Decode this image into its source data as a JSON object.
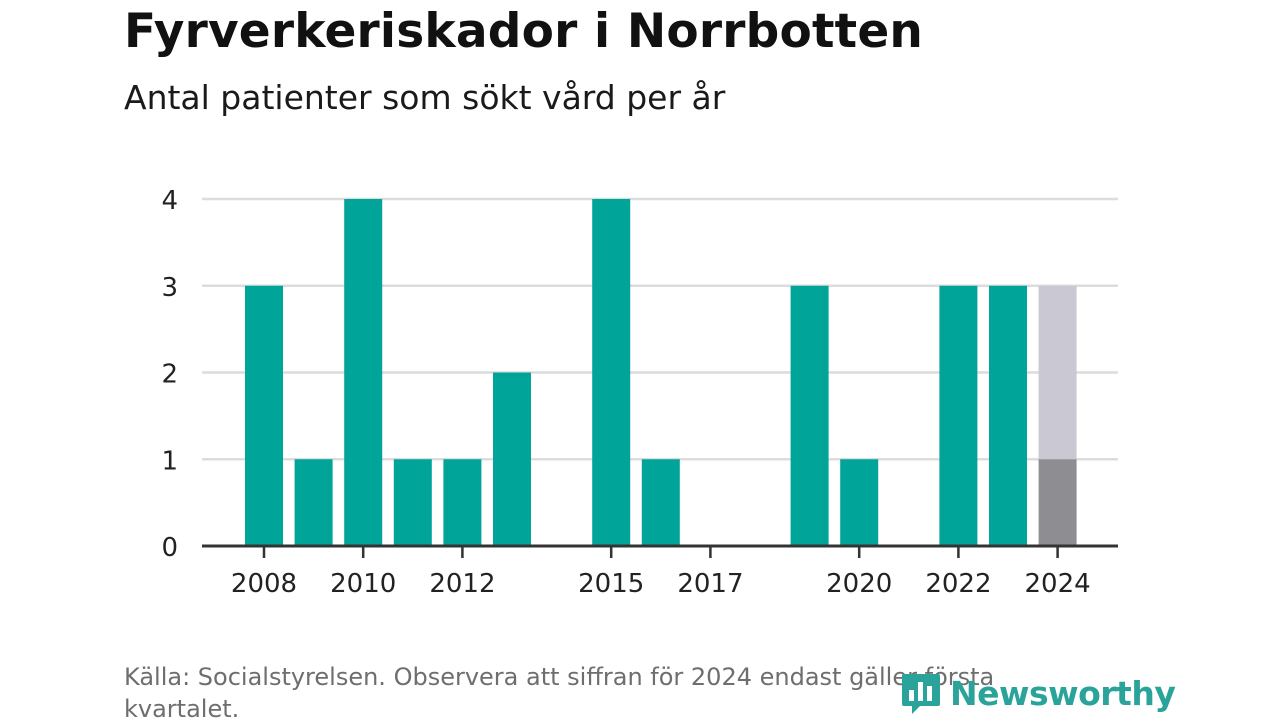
{
  "title": "Fyrverkeriskador i Norrbotten",
  "subtitle": "Antal patienter som sökt vård per år",
  "source": "Källa: Socialstyrelsen. Observera att siffran för 2024 endast gäller första kvartalet.",
  "logo": {
    "text": "Newsworthy",
    "icon": "bar-chart-logo-icon"
  },
  "colors": {
    "bar": "#00a499",
    "partial": "#8e8e92",
    "remainder": "#c9c8d3",
    "grid": "#dcdcdc",
    "axis": "#333333",
    "logo": "#2aa39a"
  },
  "chart_data": {
    "type": "bar",
    "categories": [
      2008,
      2009,
      2010,
      2011,
      2012,
      2013,
      2014,
      2015,
      2016,
      2017,
      2018,
      2019,
      2020,
      2021,
      2022,
      2023,
      2024
    ],
    "values": [
      3,
      1,
      4,
      1,
      1,
      2,
      0,
      4,
      1,
      0,
      0,
      3,
      1,
      0,
      3,
      3,
      1
    ],
    "x_tick_labels": [
      "2008",
      "2010",
      "2012",
      "2015",
      "2017",
      "2020",
      "2022",
      "2024"
    ],
    "y_ticks": [
      0,
      1,
      2,
      3,
      4
    ],
    "ylim": [
      0,
      4
    ],
    "grid": true,
    "highlight": {
      "category": 2024,
      "shown_value": 1,
      "shaded_to": 3
    }
  }
}
